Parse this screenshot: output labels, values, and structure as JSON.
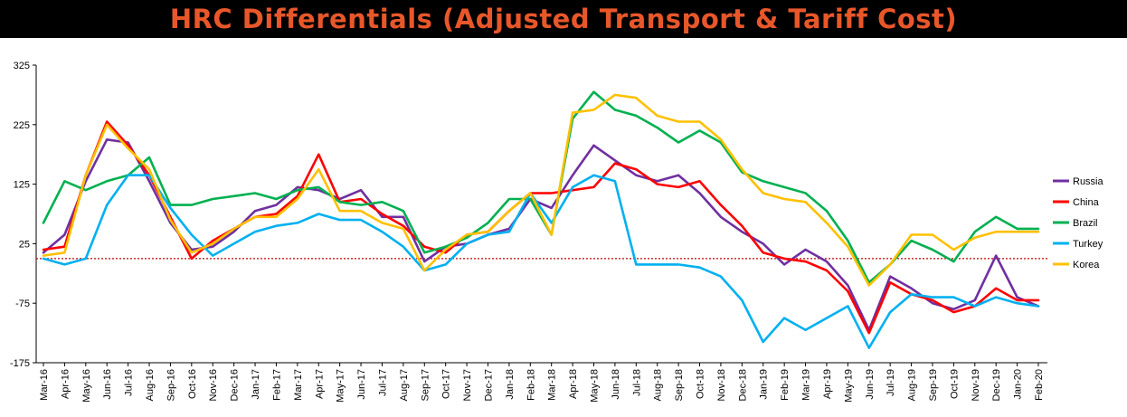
{
  "title": "HRC Differentials (Adjusted Transport & Tariff Cost)",
  "chart_data": {
    "type": "line",
    "title": "HRC Differentials (Adjusted Transport & Tariff Cost)",
    "xlabel": "",
    "ylabel": "",
    "ylim": [
      -175,
      325
    ],
    "yticks": [
      -175,
      -75,
      25,
      125,
      225,
      325
    ],
    "x_tick_labels": [
      "Mar-16",
      "Apr-16",
      "May-16",
      "Jun-16",
      "Jul-16",
      "Aug-16",
      "Sep-16",
      "Oct-16",
      "Nov-16",
      "Dec-16",
      "Jan-17",
      "Feb-17",
      "Mar-17",
      "Apr-17",
      "May-17",
      "Jun-17",
      "Jul-17",
      "Aug-17",
      "Sep-17",
      "Oct-17",
      "Nov-17",
      "Dec-17",
      "Jan-18",
      "Feb-18",
      "Mar-18",
      "Apr-18",
      "May-18",
      "Jun-18",
      "Jul-18",
      "Aug-18",
      "Sep-18",
      "Oct-18",
      "Nov-18",
      "Dec-18",
      "Jan-19",
      "Feb-19",
      "Mar-19",
      "Apr-19",
      "May-19",
      "Jun-19",
      "Jul-19",
      "Aug-19",
      "Sep-19",
      "Oct-19",
      "Nov-19",
      "Dec-19",
      "Jan-20",
      "Feb-20"
    ],
    "reference_line": {
      "y": 0,
      "style": "dotted",
      "color": "#c00000"
    },
    "legend_position": "right",
    "grid": false,
    "series": [
      {
        "name": "Russia",
        "color": "#7030a0",
        "values": [
          10,
          40,
          130,
          200,
          195,
          130,
          60,
          15,
          20,
          45,
          80,
          90,
          120,
          115,
          100,
          115,
          70,
          70,
          -5,
          20,
          25,
          40,
          50,
          100,
          85,
          140,
          190,
          165,
          140,
          130,
          140,
          110,
          70,
          45,
          25,
          -10,
          15,
          -5,
          -45,
          -120,
          -30,
          -50,
          -75,
          -85,
          -70,
          5,
          -65,
          -80
        ]
      },
      {
        "name": "China",
        "color": "#ff0000",
        "values": [
          15,
          20,
          140,
          230,
          190,
          140,
          70,
          0,
          30,
          50,
          70,
          75,
          105,
          175,
          95,
          100,
          75,
          55,
          20,
          10,
          40,
          45,
          80,
          110,
          110,
          115,
          120,
          160,
          150,
          125,
          120,
          130,
          90,
          55,
          10,
          0,
          -5,
          -20,
          -55,
          -125,
          -40,
          -60,
          -70,
          -90,
          -80,
          -50,
          -70,
          -70
        ]
      },
      {
        "name": "Brazil",
        "color": "#00b050",
        "values": [
          60,
          130,
          115,
          130,
          140,
          170,
          90,
          90,
          100,
          105,
          110,
          100,
          115,
          120,
          95,
          90,
          95,
          80,
          10,
          20,
          35,
          60,
          100,
          100,
          40,
          235,
          280,
          250,
          240,
          220,
          195,
          215,
          195,
          145,
          130,
          120,
          110,
          80,
          30,
          -40,
          -10,
          30,
          15,
          -5,
          45,
          70,
          50,
          50
        ]
      },
      {
        "name": "Turkey",
        "color": "#00b0f0",
        "values": [
          0,
          -10,
          0,
          90,
          140,
          140,
          85,
          40,
          5,
          25,
          45,
          55,
          60,
          75,
          65,
          65,
          45,
          20,
          -20,
          -10,
          25,
          40,
          45,
          110,
          60,
          120,
          140,
          130,
          -10,
          -10,
          -10,
          -15,
          -30,
          -70,
          -140,
          -100,
          -120,
          -100,
          -80,
          -150,
          -90,
          -60,
          -65,
          -65,
          -80,
          -65,
          -75,
          -80
        ]
      },
      {
        "name": "Korea",
        "color": "#ffc000",
        "values": [
          5,
          10,
          140,
          225,
          185,
          150,
          65,
          10,
          25,
          50,
          70,
          70,
          100,
          150,
          80,
          80,
          60,
          50,
          -20,
          15,
          40,
          45,
          80,
          110,
          40,
          245,
          250,
          275,
          270,
          240,
          230,
          230,
          200,
          150,
          110,
          100,
          95,
          60,
          20,
          -45,
          -10,
          40,
          40,
          15,
          35,
          45,
          45,
          45
        ]
      }
    ]
  }
}
